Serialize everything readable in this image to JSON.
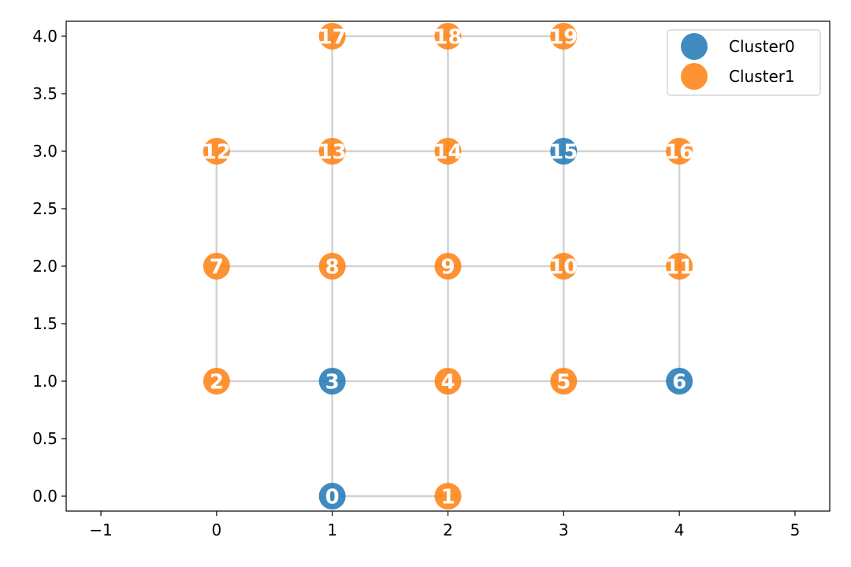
{
  "chart_data": {
    "type": "scatter",
    "title": "",
    "xlabel": "",
    "ylabel": "",
    "xlim": [
      -1.3,
      5.3
    ],
    "ylim": [
      -0.13,
      4.13
    ],
    "x_ticks": [
      "−1",
      "0",
      "1",
      "2",
      "3",
      "4",
      "5"
    ],
    "x_tick_values": [
      -1,
      0,
      1,
      2,
      3,
      4,
      5
    ],
    "y_ticks": [
      "0.0",
      "0.5",
      "1.0",
      "1.5",
      "2.0",
      "2.5",
      "3.0",
      "3.5",
      "4.0"
    ],
    "y_tick_values": [
      0,
      0.5,
      1,
      1.5,
      2,
      2.5,
      3,
      3.5,
      4
    ],
    "grid": false,
    "legend_placement": "top-right",
    "series": [
      {
        "name": "Cluster0",
        "color": "#1f77b4",
        "node_ids": [
          0,
          3,
          6,
          15
        ]
      },
      {
        "name": "Cluster1",
        "color": "#ff7f0e",
        "node_ids": [
          1,
          2,
          4,
          5,
          7,
          8,
          9,
          10,
          11,
          12,
          13,
          14,
          16,
          17,
          18,
          19
        ]
      }
    ],
    "nodes": [
      {
        "id": 0,
        "label": "0",
        "x": 1,
        "y": 0,
        "cluster": 0
      },
      {
        "id": 1,
        "label": "1",
        "x": 2,
        "y": 0,
        "cluster": 1
      },
      {
        "id": 2,
        "label": "2",
        "x": 0,
        "y": 1,
        "cluster": 1
      },
      {
        "id": 3,
        "label": "3",
        "x": 1,
        "y": 1,
        "cluster": 0
      },
      {
        "id": 4,
        "label": "4",
        "x": 2,
        "y": 1,
        "cluster": 1
      },
      {
        "id": 5,
        "label": "5",
        "x": 3,
        "y": 1,
        "cluster": 1
      },
      {
        "id": 6,
        "label": "6",
        "x": 4,
        "y": 1,
        "cluster": 0
      },
      {
        "id": 7,
        "label": "7",
        "x": 0,
        "y": 2,
        "cluster": 1
      },
      {
        "id": 8,
        "label": "8",
        "x": 1,
        "y": 2,
        "cluster": 1
      },
      {
        "id": 9,
        "label": "9",
        "x": 2,
        "y": 2,
        "cluster": 1
      },
      {
        "id": 10,
        "label": "10",
        "x": 3,
        "y": 2,
        "cluster": 1
      },
      {
        "id": 11,
        "label": "11",
        "x": 4,
        "y": 2,
        "cluster": 1
      },
      {
        "id": 12,
        "label": "12",
        "x": 0,
        "y": 3,
        "cluster": 1
      },
      {
        "id": 13,
        "label": "13",
        "x": 1,
        "y": 3,
        "cluster": 1
      },
      {
        "id": 14,
        "label": "14",
        "x": 2,
        "y": 3,
        "cluster": 1
      },
      {
        "id": 15,
        "label": "15",
        "x": 3,
        "y": 3,
        "cluster": 0
      },
      {
        "id": 16,
        "label": "16",
        "x": 4,
        "y": 3,
        "cluster": 1
      },
      {
        "id": 17,
        "label": "17",
        "x": 1,
        "y": 4,
        "cluster": 1
      },
      {
        "id": 18,
        "label": "18",
        "x": 2,
        "y": 4,
        "cluster": 1
      },
      {
        "id": 19,
        "label": "19",
        "x": 3,
        "y": 4,
        "cluster": 1
      }
    ],
    "edges": [
      [
        0,
        1
      ],
      [
        0,
        3
      ],
      [
        1,
        4
      ],
      [
        2,
        3
      ],
      [
        3,
        4
      ],
      [
        4,
        5
      ],
      [
        5,
        6
      ],
      [
        2,
        7
      ],
      [
        3,
        8
      ],
      [
        4,
        9
      ],
      [
        5,
        10
      ],
      [
        6,
        11
      ],
      [
        7,
        8
      ],
      [
        8,
        9
      ],
      [
        9,
        10
      ],
      [
        10,
        11
      ],
      [
        7,
        12
      ],
      [
        8,
        13
      ],
      [
        9,
        14
      ],
      [
        10,
        15
      ],
      [
        11,
        16
      ],
      [
        12,
        13
      ],
      [
        13,
        14
      ],
      [
        14,
        15
      ],
      [
        15,
        16
      ],
      [
        13,
        17
      ],
      [
        14,
        18
      ],
      [
        15,
        19
      ],
      [
        17,
        18
      ],
      [
        18,
        19
      ]
    ],
    "edge_color": "#d3d3d3"
  }
}
